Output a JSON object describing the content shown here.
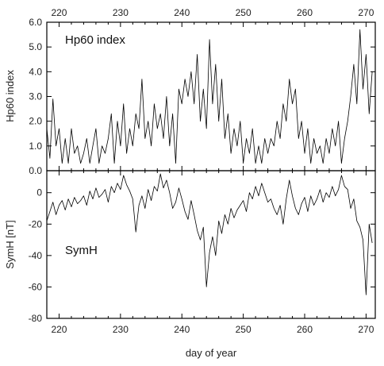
{
  "chart_data": [
    {
      "type": "line",
      "panel_label": "Hp60 index",
      "ylabel": "Hp60 index",
      "xlabel": "",
      "xlim": [
        218,
        271.5
      ],
      "ylim": [
        0,
        6
      ],
      "x_ticks": [
        220,
        230,
        240,
        250,
        260,
        270
      ],
      "y_ticks": [
        "0.0",
        "1.0",
        "2.0",
        "3.0",
        "4.0",
        "5.0",
        "6.0"
      ],
      "x_tick_labels_top": [
        "220",
        "230",
        "240",
        "250",
        "260",
        "270"
      ],
      "series": [
        {
          "x": [
            218.0,
            218.5,
            219.0,
            219.5,
            220.0,
            220.5,
            221.0,
            221.5,
            222.0,
            222.5,
            223.0,
            223.5,
            224.0,
            224.5,
            225.0,
            225.5,
            226.0,
            226.5,
            227.0,
            227.5,
            228.0,
            228.5,
            229.0,
            229.5,
            230.0,
            230.5,
            231.0,
            231.5,
            232.0,
            232.5,
            233.0,
            233.5,
            234.0,
            234.5,
            235.0,
            235.5,
            236.0,
            236.5,
            237.0,
            237.5,
            238.0,
            238.5,
            239.0,
            239.5,
            240.0,
            240.5,
            241.0,
            241.5,
            242.0,
            242.5,
            243.0,
            243.5,
            244.0,
            244.5,
            245.0,
            245.5,
            246.0,
            246.5,
            247.0,
            247.5,
            248.0,
            248.5,
            249.0,
            249.5,
            250.0,
            250.5,
            251.0,
            251.5,
            252.0,
            252.5,
            253.0,
            253.5,
            254.0,
            254.5,
            255.0,
            255.5,
            256.0,
            256.5,
            257.0,
            257.5,
            258.0,
            258.5,
            259.0,
            259.5,
            260.0,
            260.5,
            261.0,
            261.5,
            262.0,
            262.5,
            263.0,
            263.5,
            264.0,
            264.5,
            265.0,
            265.5,
            266.0,
            266.5,
            267.0,
            267.5,
            268.0,
            268.5,
            269.0,
            269.5,
            270.0,
            270.5,
            271.0
          ],
          "values": [
            1.7,
            0.5,
            2.9,
            1.0,
            1.7,
            0.3,
            1.3,
            0.3,
            1.7,
            0.7,
            1.0,
            0.3,
            0.7,
            1.3,
            0.3,
            1.0,
            1.7,
            0.3,
            1.0,
            0.7,
            1.3,
            2.3,
            0.3,
            2.0,
            1.0,
            2.7,
            0.7,
            1.7,
            1.0,
            2.3,
            1.7,
            3.7,
            1.3,
            2.0,
            1.0,
            2.7,
            1.7,
            2.3,
            1.3,
            3.0,
            1.0,
            2.3,
            0.3,
            3.3,
            2.7,
            3.7,
            3.0,
            4.0,
            2.7,
            4.7,
            2.0,
            3.3,
            1.7,
            5.3,
            2.7,
            4.3,
            2.0,
            3.7,
            1.3,
            2.3,
            0.7,
            1.7,
            1.0,
            2.0,
            0.3,
            1.3,
            0.7,
            1.7,
            0.3,
            1.0,
            0.3,
            1.3,
            0.7,
            1.3,
            1.0,
            2.0,
            1.3,
            2.7,
            2.0,
            3.7,
            2.7,
            3.3,
            1.3,
            2.0,
            0.7,
            1.7,
            0.3,
            1.3,
            0.7,
            1.0,
            0.3,
            1.3,
            0.7,
            1.7,
            1.0,
            2.0,
            0.3,
            1.3,
            2.0,
            3.0,
            4.3,
            2.7,
            5.7,
            3.3,
            4.7,
            2.3,
            4.0
          ]
        }
      ]
    },
    {
      "type": "line",
      "panel_label": "SymH",
      "ylabel": "SymH [nT]",
      "xlabel": "day of year",
      "xlim": [
        218,
        271.5
      ],
      "ylim": [
        -80,
        14
      ],
      "x_ticks": [
        220,
        230,
        240,
        250,
        260,
        270
      ],
      "y_ticks": [
        "-80",
        "-60",
        "-40",
        "-20",
        "0"
      ],
      "x_tick_labels_bottom": [
        "220",
        "230",
        "240",
        "250",
        "260",
        "270"
      ],
      "series": [
        {
          "x": [
            218.0,
            218.5,
            219.0,
            219.5,
            220.0,
            220.5,
            221.0,
            221.5,
            222.0,
            222.5,
            223.0,
            223.5,
            224.0,
            224.5,
            225.0,
            225.5,
            226.0,
            226.5,
            227.0,
            227.5,
            228.0,
            228.5,
            229.0,
            229.5,
            230.0,
            230.5,
            231.0,
            231.5,
            232.0,
            232.5,
            233.0,
            233.5,
            234.0,
            234.5,
            235.0,
            235.5,
            236.0,
            236.5,
            237.0,
            237.5,
            238.0,
            238.5,
            239.0,
            239.5,
            240.0,
            240.5,
            241.0,
            241.5,
            242.0,
            242.5,
            243.0,
            243.5,
            244.0,
            244.5,
            245.0,
            245.5,
            246.0,
            246.5,
            247.0,
            247.5,
            248.0,
            248.5,
            249.0,
            249.5,
            250.0,
            250.5,
            251.0,
            251.5,
            252.0,
            252.5,
            253.0,
            253.5,
            254.0,
            254.5,
            255.0,
            255.5,
            256.0,
            256.5,
            257.0,
            257.5,
            258.0,
            258.5,
            259.0,
            259.5,
            260.0,
            260.5,
            261.0,
            261.5,
            262.0,
            262.5,
            263.0,
            263.5,
            264.0,
            264.5,
            265.0,
            265.5,
            266.0,
            266.5,
            267.0,
            267.5,
            268.0,
            268.5,
            269.0,
            269.5,
            270.0,
            270.5,
            271.0
          ],
          "values": [
            -18,
            -12,
            -6,
            -14,
            -8,
            -5,
            -11,
            -4,
            -9,
            -3,
            -7,
            -5,
            -2,
            -8,
            1,
            -4,
            3,
            -3,
            -1,
            2,
            -6,
            4,
            0,
            6,
            2,
            11,
            5,
            1,
            -4,
            -25,
            -8,
            -2,
            -10,
            2,
            -5,
            4,
            1,
            12,
            3,
            8,
            0,
            -10,
            -6,
            3,
            -4,
            -12,
            -17,
            -5,
            -14,
            -24,
            -30,
            -22,
            -60,
            -38,
            -28,
            -40,
            -18,
            -26,
            -14,
            -20,
            -10,
            -16,
            -11,
            -8,
            -5,
            -12,
            0,
            -4,
            4,
            -2,
            6,
            0,
            -6,
            -4,
            -10,
            -14,
            -8,
            -20,
            -4,
            8,
            -2,
            -10,
            -14,
            -7,
            -3,
            -12,
            -2,
            -8,
            -4,
            2,
            -6,
            0,
            -3,
            4,
            -2,
            2,
            11,
            4,
            2,
            -10,
            -4,
            -18,
            -22,
            -30,
            -65,
            -20,
            -32
          ]
        }
      ]
    }
  ]
}
